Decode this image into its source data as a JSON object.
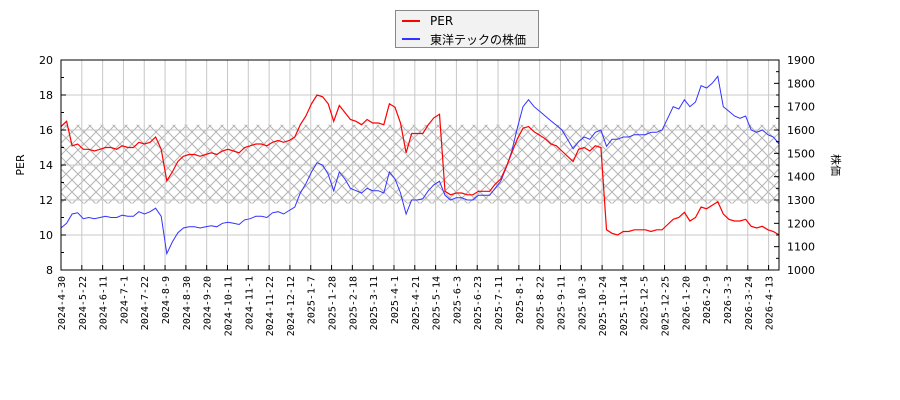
{
  "chart_data": {
    "type": "line",
    "title": "",
    "legend": {
      "position": "top-center",
      "entries": [
        "PER",
        "東洋テックの株価"
      ]
    },
    "colors": {
      "PER": "#ff0000",
      "price": "#3333ff",
      "hatch": "#b0b0b0",
      "grid": "#c8c8c8"
    },
    "left_axis": {
      "label": "PER",
      "ylim": [
        8,
        20
      ],
      "ticks": [
        8,
        10,
        12,
        14,
        16,
        18,
        20
      ]
    },
    "right_axis": {
      "label": "株価",
      "ylim": [
        1000,
        1900
      ],
      "ticks": [
        1000,
        1100,
        1200,
        1300,
        1400,
        1500,
        1600,
        1700,
        1800,
        1900
      ]
    },
    "shaded_band": {
      "axis": "PER",
      "from": 11.8,
      "to": 16.3,
      "pattern": "crosshatch"
    },
    "grid": true,
    "x_tick_labels": [
      "2024-4-30",
      "2024-5-22",
      "2024-6-11",
      "2024-7-1",
      "2024-7-22",
      "2024-8-9",
      "2024-8-30",
      "2024-9-20",
      "2024-10-11",
      "2024-11-1",
      "2024-11-22",
      "2024-12-12",
      "2025-1-7",
      "2025-1-28",
      "2025-2-18",
      "2025-3-11",
      "2025-4-1",
      "2025-4-21",
      "2025-5-14",
      "2025-6-3",
      "2025-6-23",
      "2025-7-11",
      "2025-8-1",
      "2025-8-22",
      "2025-9-11",
      "2025-10-3",
      "2025-10-24",
      "2025-11-14",
      "2025-12-5",
      "2025-12-25",
      "2026-1-20",
      "2026-2-9",
      "2026-3-3",
      "2026-3-24",
      "2026-4-13"
    ],
    "series": [
      {
        "name": "PER",
        "axis": "left",
        "values": [
          16.2,
          16.5,
          15.1,
          15.2,
          14.9,
          14.9,
          14.8,
          14.9,
          15.0,
          15.0,
          14.9,
          15.1,
          15.0,
          15.0,
          15.3,
          15.2,
          15.3,
          15.6,
          14.9,
          13.1,
          13.6,
          14.2,
          14.5,
          14.6,
          14.6,
          14.5,
          14.6,
          14.7,
          14.6,
          14.8,
          14.9,
          14.8,
          14.7,
          15.0,
          15.1,
          15.2,
          15.2,
          15.1,
          15.3,
          15.4,
          15.3,
          15.4,
          15.6,
          16.3,
          16.8,
          17.5,
          18.0,
          17.9,
          17.5,
          16.5,
          17.4,
          17.0,
          16.6,
          16.5,
          16.3,
          16.6,
          16.4,
          16.4,
          16.3,
          17.5,
          17.3,
          16.4,
          14.7,
          15.8,
          15.8,
          15.8,
          16.3,
          16.7,
          16.9,
          12.5,
          12.3,
          12.4,
          12.4,
          12.3,
          12.3,
          12.5,
          12.5,
          12.5,
          12.9,
          13.2,
          13.9,
          14.7,
          15.5,
          16.1,
          16.2,
          15.9,
          15.7,
          15.5,
          15.2,
          15.1,
          14.8,
          14.5,
          14.2,
          14.9,
          15.0,
          14.8,
          15.1,
          15.0,
          10.3,
          10.1,
          10.0,
          10.2,
          10.2,
          10.3,
          10.3,
          10.3,
          10.2,
          10.3,
          10.3,
          10.6,
          10.9,
          11.0,
          11.3,
          10.8,
          11.0,
          11.6,
          11.5,
          11.7,
          11.9,
          11.2,
          10.9,
          10.8,
          10.8,
          10.9,
          10.5,
          10.4,
          10.5,
          10.3,
          10.2,
          10.0
        ]
      },
      {
        "name": "東洋テックの株価",
        "axis": "right",
        "values": [
          1180,
          1200,
          1240,
          1245,
          1220,
          1225,
          1220,
          1225,
          1230,
          1225,
          1225,
          1235,
          1230,
          1230,
          1250,
          1240,
          1250,
          1265,
          1230,
          1070,
          1120,
          1160,
          1180,
          1185,
          1185,
          1180,
          1185,
          1190,
          1185,
          1200,
          1205,
          1200,
          1195,
          1215,
          1220,
          1230,
          1230,
          1225,
          1245,
          1250,
          1240,
          1255,
          1270,
          1330,
          1370,
          1420,
          1460,
          1450,
          1410,
          1340,
          1420,
          1390,
          1350,
          1340,
          1330,
          1350,
          1340,
          1340,
          1330,
          1420,
          1390,
          1330,
          1240,
          1300,
          1300,
          1305,
          1340,
          1365,
          1380,
          1320,
          1300,
          1310,
          1310,
          1300,
          1300,
          1320,
          1320,
          1320,
          1350,
          1380,
          1440,
          1510,
          1610,
          1700,
          1730,
          1700,
          1680,
          1660,
          1640,
          1620,
          1600,
          1560,
          1520,
          1550,
          1570,
          1560,
          1590,
          1600,
          1530,
          1560,
          1560,
          1570,
          1570,
          1580,
          1580,
          1580,
          1590,
          1590,
          1600,
          1650,
          1700,
          1690,
          1730,
          1700,
          1720,
          1790,
          1780,
          1800,
          1830,
          1700,
          1680,
          1660,
          1650,
          1660,
          1600,
          1590,
          1600,
          1580,
          1570,
          1540
        ]
      }
    ]
  }
}
